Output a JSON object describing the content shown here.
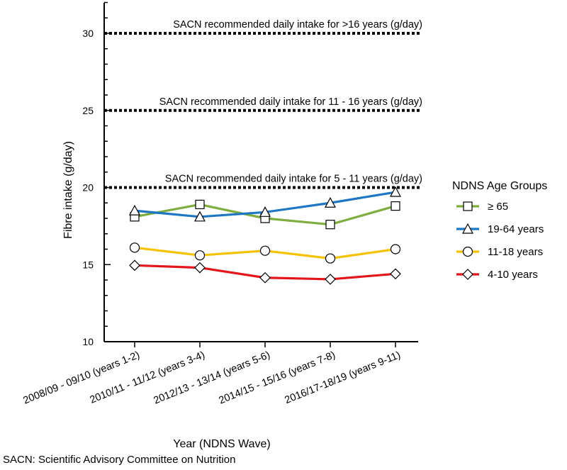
{
  "chart_data": {
    "type": "line",
    "categories": [
      "2008/09 - 09/10 (years 1-2)",
      "2010/11 - 11/12 (years 3-4)",
      "2012/13 - 13/14 (years 5-6)",
      "2014/15 - 15/16 (years 7-8)",
      "2016/17-18/19 (years 9-11)"
    ],
    "series": [
      {
        "name": "≥ 65",
        "color": "#7fad3f",
        "marker": "square",
        "values": [
          18.1,
          18.9,
          18.0,
          17.6,
          18.8
        ]
      },
      {
        "name": "19-64 years",
        "color": "#1e77c4",
        "marker": "triangle",
        "values": [
          18.5,
          18.1,
          18.4,
          19.0,
          19.7
        ]
      },
      {
        "name": "11-18 years",
        "color": "#f5c200",
        "marker": "circle",
        "values": [
          16.1,
          15.6,
          15.9,
          15.4,
          16.0
        ]
      },
      {
        "name": "4-10 years",
        "color": "#e3161b",
        "marker": "diamond",
        "values": [
          14.95,
          14.8,
          14.15,
          14.05,
          14.4
        ]
      }
    ],
    "reference_lines": [
      {
        "value": 30,
        "label": "SACN recommended daily intake for >16 years (g/day)"
      },
      {
        "value": 25,
        "label": "SACN recommended daily intake for 11 - 16 years (g/day)"
      },
      {
        "value": 20,
        "label": "SACN recommended daily intake for 5 - 11 years (g/day)"
      }
    ],
    "yticks": [
      10,
      15,
      20,
      25,
      30
    ],
    "ylim": [
      10,
      32
    ],
    "ylabel": "Fibre intake (g/day)",
    "xlabel": "Year (NDNS Wave)",
    "legend_title": "NDNS Age Groups",
    "legend_position": "right"
  },
  "footnote": "SACN: Scientific Advisory Committee on Nutrition"
}
